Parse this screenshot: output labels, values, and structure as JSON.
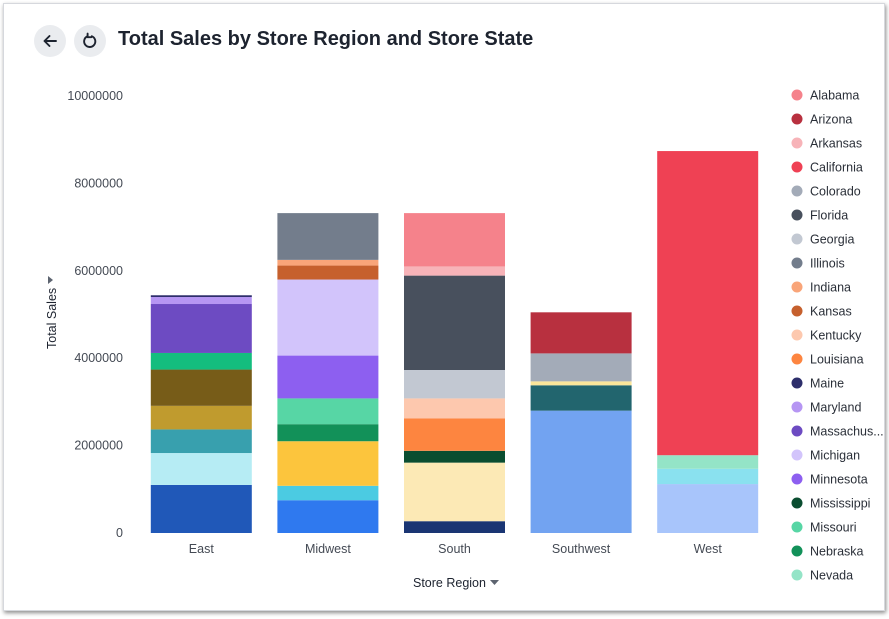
{
  "header": {
    "title": "Total Sales by Store Region and Store State",
    "back_icon": "arrow-left-icon",
    "refresh_icon": "refresh-icon"
  },
  "chart_data": {
    "type": "bar",
    "stacked": true,
    "xlabel": "Store Region",
    "ylabel": "Total Sales",
    "ylim": [
      0,
      10000000
    ],
    "yticks": [
      0,
      2000000,
      4000000,
      6000000,
      8000000,
      10000000
    ],
    "categories": [
      "East",
      "Midwest",
      "South",
      "Southwest",
      "West"
    ],
    "legend_position": "right",
    "legend": [
      {
        "name": "Alabama",
        "color": "#f5828b"
      },
      {
        "name": "Arizona",
        "color": "#b8303f"
      },
      {
        "name": "Arkansas",
        "color": "#f7b3b8"
      },
      {
        "name": "California",
        "color": "#ef4154"
      },
      {
        "name": "Colorado",
        "color": "#a3abb8"
      },
      {
        "name": "Florida",
        "color": "#48505d"
      },
      {
        "name": "Georgia",
        "color": "#c2c8d2"
      },
      {
        "name": "Illinois",
        "color": "#737d8c"
      },
      {
        "name": "Indiana",
        "color": "#f9a579"
      },
      {
        "name": "Kansas",
        "color": "#c6602d"
      },
      {
        "name": "Kentucky",
        "color": "#fdc8ae"
      },
      {
        "name": "Louisiana",
        "color": "#fd8540"
      },
      {
        "name": "Maine",
        "color": "#2d2e6b"
      },
      {
        "name": "Maryland",
        "color": "#b696f3"
      },
      {
        "name": "Massachus...",
        "color": "#6d4bc2"
      },
      {
        "name": "Michigan",
        "color": "#d2c4fb"
      },
      {
        "name": "Minnesota",
        "color": "#8d5ff0"
      },
      {
        "name": "Mississippi",
        "color": "#0a4d30"
      },
      {
        "name": "Missouri",
        "color": "#57d6a5"
      },
      {
        "name": "Nebraska",
        "color": "#129159"
      },
      {
        "name": "Nevada",
        "color": "#94e4c7"
      }
    ],
    "stacks": [
      {
        "category": "East",
        "segments": [
          {
            "value": 1100000,
            "color": "#2058b8"
          },
          {
            "value": 730000,
            "color": "#b6ecf4"
          },
          {
            "value": 540000,
            "color": "#38a0ae"
          },
          {
            "value": 540000,
            "color": "#c09b2e"
          },
          {
            "value": 830000,
            "color": "#775c18"
          },
          {
            "value": 380000,
            "color": "#14bd7e"
          },
          {
            "value": 1120000,
            "color": "#6d4bc2"
          },
          {
            "value": 160000,
            "color": "#b696f3"
          },
          {
            "value": 40000,
            "color": "#2d2e6b"
          }
        ]
      },
      {
        "category": "Midwest",
        "segments": [
          {
            "value": 750000,
            "color": "#2f79ef"
          },
          {
            "value": 330000,
            "color": "#4bcbe2"
          },
          {
            "value": 1020000,
            "color": "#fcc53d"
          },
          {
            "value": 390000,
            "color": "#129159"
          },
          {
            "value": 590000,
            "color": "#57d6a5"
          },
          {
            "value": 980000,
            "color": "#8d5ff0"
          },
          {
            "value": 1740000,
            "color": "#d2c4fb"
          },
          {
            "value": 320000,
            "color": "#c6602d"
          },
          {
            "value": 130000,
            "color": "#f9a579"
          },
          {
            "value": 1070000,
            "color": "#737d8c"
          }
        ]
      },
      {
        "category": "South",
        "segments": [
          {
            "value": 270000,
            "color": "#1a3573"
          },
          {
            "value": 1340000,
            "color": "#fce9b5"
          },
          {
            "value": 270000,
            "color": "#0a4d30"
          },
          {
            "value": 740000,
            "color": "#fd8540"
          },
          {
            "value": 460000,
            "color": "#fdc8ae"
          },
          {
            "value": 650000,
            "color": "#c2c8d2"
          },
          {
            "value": 2160000,
            "color": "#48505d"
          },
          {
            "value": 210000,
            "color": "#f7b3b8"
          },
          {
            "value": 1220000,
            "color": "#f5828b"
          }
        ]
      },
      {
        "category": "Southwest",
        "segments": [
          {
            "value": 2800000,
            "color": "#72a3f1"
          },
          {
            "value": 580000,
            "color": "#22656e"
          },
          {
            "value": 90000,
            "color": "#fbe59a"
          },
          {
            "value": 640000,
            "color": "#a3abb8"
          },
          {
            "value": 940000,
            "color": "#b8303f"
          }
        ]
      },
      {
        "category": "West",
        "segments": [
          {
            "value": 1120000,
            "color": "#a8c5fb"
          },
          {
            "value": 350000,
            "color": "#8ae1ef"
          },
          {
            "value": 310000,
            "color": "#94e4c7"
          },
          {
            "value": 6960000,
            "color": "#ef4154"
          }
        ]
      }
    ]
  }
}
